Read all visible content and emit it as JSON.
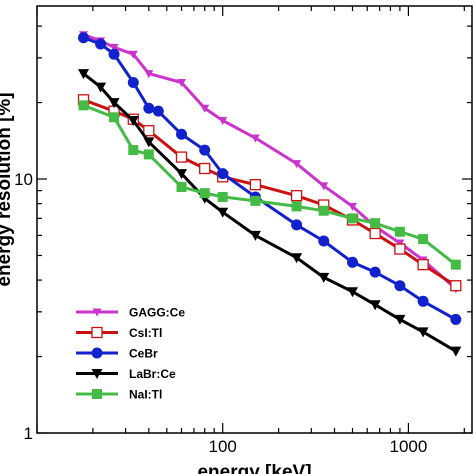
{
  "chart_data": {
    "type": "line",
    "xlabel": "energy [keV]",
    "ylabel": "energy resolution [%]",
    "xscale": "log",
    "yscale": "log",
    "xlim": [
      10,
      2200
    ],
    "ylim": [
      1,
      48
    ],
    "x_tick_labels": [
      {
        "value": 100,
        "label": "100"
      },
      {
        "value": 1000,
        "label": "1000"
      }
    ],
    "y_tick_labels": [
      {
        "value": 1,
        "label": "1"
      },
      {
        "value": 10,
        "label": "10"
      }
    ],
    "legend_position": "bottom-left",
    "series": [
      {
        "name": "GAGG:Ce",
        "color": "#cc33cc",
        "marker": "triangle-down-small",
        "points": [
          [
            17.8,
            37
          ],
          [
            22,
            35
          ],
          [
            26,
            33
          ],
          [
            33,
            31
          ],
          [
            40,
            26
          ],
          [
            60,
            24
          ],
          [
            80,
            19
          ],
          [
            100,
            17
          ],
          [
            150,
            14.5
          ],
          [
            250,
            11.5
          ],
          [
            350,
            9.4
          ],
          [
            500,
            7.8
          ],
          [
            662,
            6.5
          ],
          [
            900,
            5.6
          ],
          [
            1200,
            4.8
          ],
          [
            1800,
            3.7
          ]
        ]
      },
      {
        "name": "CsI:Tl",
        "color": "#cc1111",
        "marker": "square-open",
        "points": [
          [
            17.8,
            20.5
          ],
          [
            26,
            18.5
          ],
          [
            33,
            17.2
          ],
          [
            40,
            15.5
          ],
          [
            60,
            12.2
          ],
          [
            80,
            11.0
          ],
          [
            100,
            10.2
          ],
          [
            150,
            9.5
          ],
          [
            250,
            8.6
          ],
          [
            350,
            7.9
          ],
          [
            500,
            6.9
          ],
          [
            662,
            6.1
          ],
          [
            900,
            5.3
          ],
          [
            1200,
            4.6
          ],
          [
            1800,
            3.8
          ]
        ]
      },
      {
        "name": "CeBr",
        "color": "#1122cc",
        "marker": "circle",
        "points": [
          [
            17.8,
            36
          ],
          [
            22,
            34
          ],
          [
            26,
            31
          ],
          [
            33,
            24
          ],
          [
            40,
            19
          ],
          [
            45,
            18.5
          ],
          [
            60,
            15
          ],
          [
            80,
            13
          ],
          [
            100,
            10.5
          ],
          [
            150,
            8.5
          ],
          [
            250,
            6.6
          ],
          [
            350,
            5.7
          ],
          [
            500,
            4.7
          ],
          [
            662,
            4.3
          ],
          [
            900,
            3.8
          ],
          [
            1200,
            3.3
          ],
          [
            1800,
            2.8
          ]
        ]
      },
      {
        "name": "LaBr:Ce",
        "color": "#000000",
        "marker": "triangle-down",
        "points": [
          [
            17.8,
            26
          ],
          [
            22,
            23
          ],
          [
            26,
            20
          ],
          [
            33,
            17
          ],
          [
            40,
            14
          ],
          [
            60,
            10.5
          ],
          [
            80,
            8.4
          ],
          [
            100,
            7.4
          ],
          [
            150,
            6.0
          ],
          [
            250,
            4.9
          ],
          [
            350,
            4.1
          ],
          [
            500,
            3.6
          ],
          [
            662,
            3.2
          ],
          [
            900,
            2.8
          ],
          [
            1200,
            2.5
          ],
          [
            1800,
            2.1
          ]
        ]
      },
      {
        "name": "NaI:Tl",
        "color": "#44bb44",
        "marker": "square",
        "points": [
          [
            17.8,
            19.5
          ],
          [
            26,
            17.5
          ],
          [
            33,
            13.0
          ],
          [
            40,
            12.5
          ],
          [
            60,
            9.3
          ],
          [
            80,
            8.8
          ],
          [
            100,
            8.5
          ],
          [
            150,
            8.2
          ],
          [
            250,
            7.8
          ],
          [
            350,
            7.5
          ],
          [
            500,
            7.0
          ],
          [
            662,
            6.7
          ],
          [
            900,
            6.2
          ],
          [
            1200,
            5.8
          ],
          [
            1800,
            4.6
          ]
        ]
      }
    ]
  }
}
